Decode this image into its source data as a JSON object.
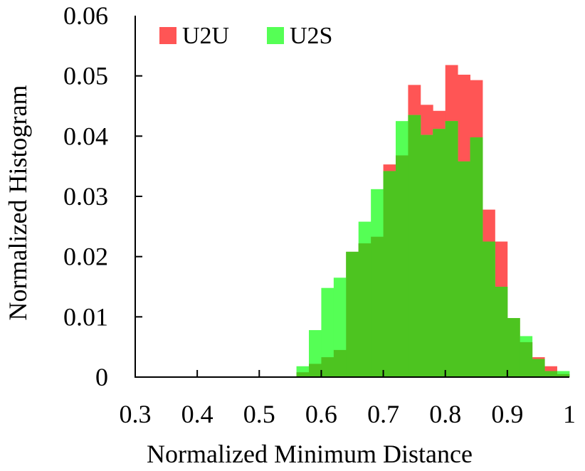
{
  "chart_data": {
    "type": "bar",
    "title": "",
    "xlabel": "Normalized Minimum Distance",
    "ylabel": "Normalized Histogram",
    "xlim": [
      0.3,
      1.0
    ],
    "ylim": [
      0,
      0.06
    ],
    "bin_width": 0.02,
    "xticks": [
      "0.3",
      "0.4",
      "0.5",
      "0.6",
      "0.7",
      "0.8",
      "0.9",
      "1"
    ],
    "yticks": [
      "0",
      "0.01",
      "0.02",
      "0.03",
      "0.04",
      "0.05",
      "0.06"
    ],
    "legend_placement": "top-left",
    "grid": false,
    "bin_starts": [
      0.56,
      0.58,
      0.6,
      0.62,
      0.64,
      0.66,
      0.68,
      0.7,
      0.72,
      0.74,
      0.76,
      0.78,
      0.8,
      0.82,
      0.84,
      0.86,
      0.88,
      0.9,
      0.92,
      0.94,
      0.96,
      0.98
    ],
    "series": [
      {
        "name": "U2U",
        "color": "#ff5555",
        "values": [
          0.0008,
          0.0022,
          0.0033,
          0.0045,
          0.0208,
          0.0222,
          0.0233,
          0.0353,
          0.0368,
          0.0485,
          0.0452,
          0.0442,
          0.0518,
          0.0502,
          0.0493,
          0.0278,
          0.0225,
          0.0098,
          0.0058,
          0.0033,
          0.0018,
          0.0005
        ]
      },
      {
        "name": "U2S",
        "color": "#55ff55",
        "values": [
          0.0018,
          0.0078,
          0.0148,
          0.0165,
          0.0208,
          0.0258,
          0.0312,
          0.0342,
          0.0425,
          0.0435,
          0.0402,
          0.0412,
          0.0425,
          0.0358,
          0.0398,
          0.0225,
          0.015,
          0.0098,
          0.0068,
          0.003,
          0.001,
          0.001
        ]
      }
    ],
    "overlap_color": "#4dc420"
  }
}
